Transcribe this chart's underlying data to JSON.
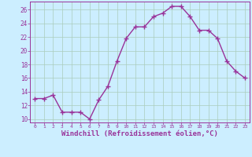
{
  "x": [
    0,
    1,
    2,
    3,
    4,
    5,
    6,
    7,
    8,
    9,
    10,
    11,
    12,
    13,
    14,
    15,
    16,
    17,
    18,
    19,
    20,
    21,
    22,
    23
  ],
  "y": [
    13,
    13,
    13.5,
    11,
    11,
    11,
    10,
    12.8,
    14.8,
    18.5,
    21.8,
    23.5,
    23.5,
    25,
    25.5,
    26.5,
    26.5,
    25,
    23,
    23,
    21.8,
    18.5,
    17,
    16
  ],
  "line_color": "#993399",
  "marker": "+",
  "markersize": 4,
  "linewidth": 1.0,
  "background_color": "#cceeff",
  "grid_color": "#aaccbb",
  "xlabel": "Windchill (Refroidissement éolien,°C)",
  "xlabel_fontsize": 6.5,
  "tick_color": "#993399",
  "label_color": "#993399",
  "ylim": [
    9.5,
    27.2
  ],
  "yticks": [
    10,
    12,
    14,
    16,
    18,
    20,
    22,
    24,
    26
  ],
  "xticks": [
    0,
    1,
    2,
    3,
    4,
    5,
    6,
    7,
    8,
    9,
    10,
    11,
    12,
    13,
    14,
    15,
    16,
    17,
    18,
    19,
    20,
    21,
    22,
    23
  ],
  "xlim": [
    -0.5,
    23.5
  ]
}
